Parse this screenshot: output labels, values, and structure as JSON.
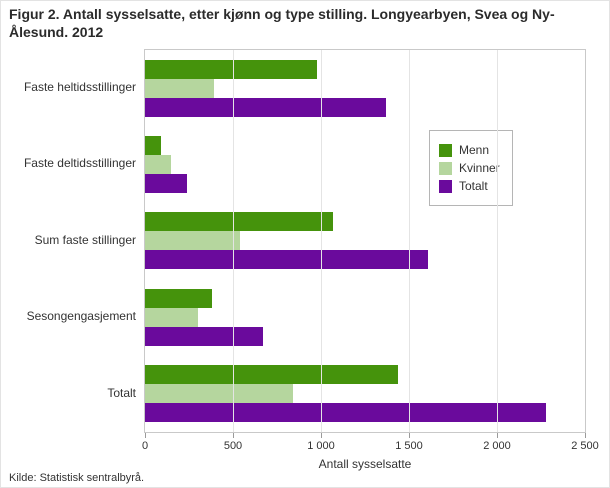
{
  "title": "Figur 2. Antall sysselsatte, etter kjønn og type stilling. Longyearbyen, Svea og Ny-Ålesund. 2012",
  "source": "Kilde: Statistisk sentralbyrå.",
  "chart_data": {
    "type": "bar",
    "orientation": "horizontal",
    "title": "Figur 2. Antall sysselsatte, etter kjønn og type stilling. Longyearbyen, Svea og Ny-Ålesund. 2012",
    "categories": [
      "Faste heltidsstillinger",
      "Faste deltidsstillinger",
      "Sum faste stillinger",
      "Sesongengasjement",
      "Totalt"
    ],
    "series": [
      {
        "name": "Menn",
        "color": "#45930c",
        "values": [
          980,
          90,
          1070,
          380,
          1440
        ]
      },
      {
        "name": "Kvinner",
        "color": "#b5d69e",
        "values": [
          390,
          150,
          540,
          300,
          840
        ]
      },
      {
        "name": "Totalt",
        "color": "#6a0a9c",
        "values": [
          1370,
          240,
          1610,
          670,
          2280
        ]
      }
    ],
    "xlabel": "Antall sysselsatte",
    "ylabel": "",
    "xlim": [
      0,
      2500
    ],
    "xticks": [
      0,
      500,
      1000,
      1500,
      2000,
      2500
    ],
    "xtick_labels": [
      "0",
      "500",
      "1 000",
      "1 500",
      "2 000",
      "2 500"
    ],
    "grid": true,
    "legend_position": "inside-upper-right"
  }
}
